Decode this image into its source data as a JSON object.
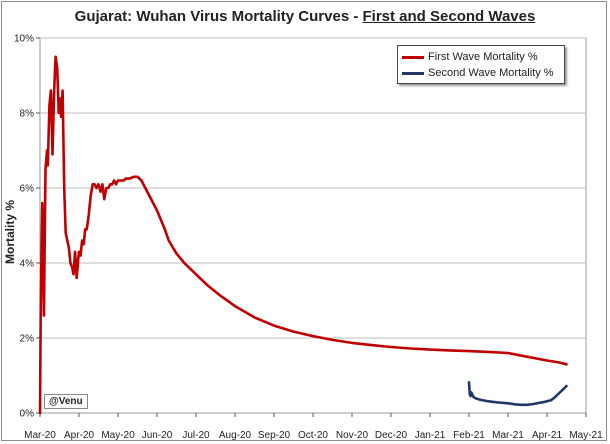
{
  "title": {
    "prefix": "Gujarat: Wuhan Virus Mortality Curves - ",
    "underlined": "First and Second Waves"
  },
  "credit": "@Venu",
  "chart_data": {
    "type": "line",
    "title": "Gujarat: Wuhan Virus Mortality Curves - First and Second Waves",
    "xlabel": "",
    "ylabel": "Mortality %",
    "ylim": [
      0,
      10
    ],
    "yticks": [
      0,
      2,
      4,
      6,
      8,
      10
    ],
    "ytick_labels": [
      "0%",
      "2%",
      "4%",
      "6%",
      "8%",
      "10%"
    ],
    "xlim": [
      0,
      14
    ],
    "xticks": [
      0,
      1,
      2,
      3,
      4,
      5,
      6,
      7,
      8,
      9,
      10,
      11,
      12,
      13,
      14
    ],
    "xtick_labels": [
      "Mar-20",
      "Apr-20",
      "May-20",
      "Jun-20",
      "Jul-20",
      "Aug-20",
      "Sep-20",
      "Oct-20",
      "Nov-20",
      "Dec-20",
      "Jan-21",
      "Feb-21",
      "Mar-21",
      "Apr-21",
      "May-21"
    ],
    "grid": true,
    "legend": "top-right",
    "series": [
      {
        "name": "First Wave Mortality %",
        "color": "#c00000",
        "x": [
          0.0,
          0.02,
          0.06,
          0.1,
          0.14,
          0.18,
          0.2,
          0.24,
          0.28,
          0.32,
          0.36,
          0.4,
          0.44,
          0.48,
          0.5,
          0.54,
          0.58,
          0.62,
          0.66,
          0.7,
          0.74,
          0.78,
          0.82,
          0.86,
          0.9,
          0.94,
          0.98,
          1.0,
          1.04,
          1.08,
          1.12,
          1.16,
          1.2,
          1.25,
          1.3,
          1.35,
          1.4,
          1.45,
          1.5,
          1.55,
          1.6,
          1.65,
          1.7,
          1.75,
          1.8,
          1.85,
          1.9,
          1.95,
          2.0,
          2.05,
          2.1,
          2.15,
          2.2,
          2.3,
          2.4,
          2.5,
          2.6,
          2.7,
          2.8,
          2.9,
          3.0,
          3.1,
          3.2,
          3.3,
          3.5,
          3.7,
          4.0,
          4.3,
          4.6,
          5.0,
          5.5,
          6.0,
          6.5,
          7.0,
          7.5,
          8.0,
          8.5,
          9.0,
          9.5,
          10.0,
          10.5,
          11.0,
          11.5,
          12.0,
          12.5,
          13.0,
          13.3,
          13.5
        ],
        "values": [
          0.0,
          3.0,
          5.6,
          2.6,
          6.5,
          7.0,
          6.6,
          8.2,
          8.6,
          6.9,
          8.5,
          9.5,
          9.2,
          8.0,
          8.4,
          7.9,
          8.6,
          6.0,
          4.8,
          4.6,
          4.4,
          4.0,
          3.9,
          3.7,
          4.3,
          3.6,
          4.1,
          4.3,
          4.2,
          4.6,
          4.5,
          4.9,
          4.9,
          5.3,
          5.8,
          6.1,
          6.1,
          6.0,
          6.1,
          5.9,
          6.1,
          5.7,
          6.0,
          6.0,
          6.1,
          6.1,
          6.2,
          6.1,
          6.2,
          6.2,
          6.2,
          6.2,
          6.25,
          6.25,
          6.3,
          6.3,
          6.2,
          6.0,
          5.8,
          5.6,
          5.4,
          5.15,
          4.9,
          4.6,
          4.25,
          4.0,
          3.7,
          3.4,
          3.15,
          2.85,
          2.55,
          2.33,
          2.17,
          2.05,
          1.95,
          1.87,
          1.81,
          1.76,
          1.72,
          1.69,
          1.67,
          1.65,
          1.63,
          1.6,
          1.5,
          1.4,
          1.35,
          1.3
        ]
      },
      {
        "name": "Second Wave Mortality %",
        "color": "#1f3864",
        "x": [
          11.0,
          11.02,
          11.04,
          11.06,
          11.09,
          11.12,
          11.16,
          11.2,
          11.3,
          11.45,
          11.6,
          11.75,
          11.9,
          12.05,
          12.2,
          12.35,
          12.5,
          12.65,
          12.8,
          12.95,
          13.1,
          13.2,
          13.3,
          13.4,
          13.5
        ],
        "values": [
          0.82,
          0.5,
          0.45,
          0.55,
          0.48,
          0.42,
          0.4,
          0.38,
          0.35,
          0.32,
          0.3,
          0.28,
          0.27,
          0.25,
          0.23,
          0.22,
          0.22,
          0.24,
          0.27,
          0.3,
          0.34,
          0.42,
          0.52,
          0.62,
          0.72
        ]
      }
    ]
  }
}
